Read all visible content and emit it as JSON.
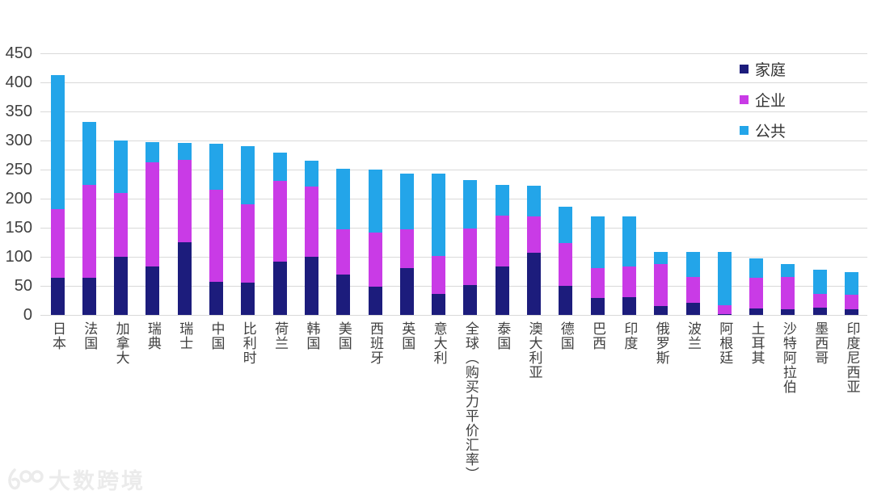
{
  "watermark": {
    "brand": "大数跨境",
    "logo_text": "100"
  },
  "chart_data": {
    "type": "bar",
    "stacked": true,
    "title": "",
    "xlabel": "",
    "ylabel": "",
    "categories": [
      "日本",
      "法国",
      "加拿大",
      "瑞典",
      "瑞士",
      "中国",
      "比利时",
      "荷兰",
      "韩国",
      "美国",
      "西班牙",
      "英国",
      "意大利",
      "全球（购买力平价汇率）",
      "泰国",
      "澳大利亚",
      "德国",
      "巴西",
      "印度",
      "俄罗斯",
      "波兰",
      "阿根廷",
      "土耳其",
      "沙特阿拉伯",
      "墨西哥",
      "印度尼西亚"
    ],
    "series": [
      {
        "name": "家庭",
        "color": "#1C1C7C",
        "values": [
          64,
          64,
          100,
          84,
          125,
          57,
          56,
          92,
          100,
          70,
          49,
          81,
          36,
          52,
          83,
          107,
          50,
          29,
          30,
          15,
          21,
          2,
          11,
          10,
          12,
          10
        ]
      },
      {
        "name": "企业",
        "color": "#C93BE6",
        "values": [
          118,
          160,
          110,
          179,
          141,
          159,
          135,
          138,
          121,
          77,
          93,
          66,
          66,
          97,
          88,
          63,
          73,
          52,
          53,
          73,
          44,
          15,
          53,
          55,
          24,
          25
        ]
      },
      {
        "name": "公共",
        "color": "#23A5E9",
        "values": [
          230,
          108,
          90,
          34,
          30,
          78,
          100,
          49,
          44,
          104,
          108,
          96,
          141,
          83,
          53,
          52,
          63,
          88,
          86,
          21,
          43,
          91,
          33,
          23,
          42,
          38
        ]
      }
    ],
    "totals": [
      412,
      332,
      300,
      297,
      296,
      294,
      291,
      279,
      265,
      251,
      250,
      243,
      243,
      232,
      224,
      222,
      186,
      169,
      169,
      109,
      108,
      108,
      97,
      88,
      78,
      73
    ],
    "ylim": [
      0,
      450
    ],
    "yticks": [
      0,
      50,
      100,
      150,
      200,
      250,
      300,
      350,
      400,
      450
    ],
    "grid": true,
    "gridline_color": "#d9d9d9",
    "tick_text_color": "#404040",
    "legend_position": "top-right"
  }
}
